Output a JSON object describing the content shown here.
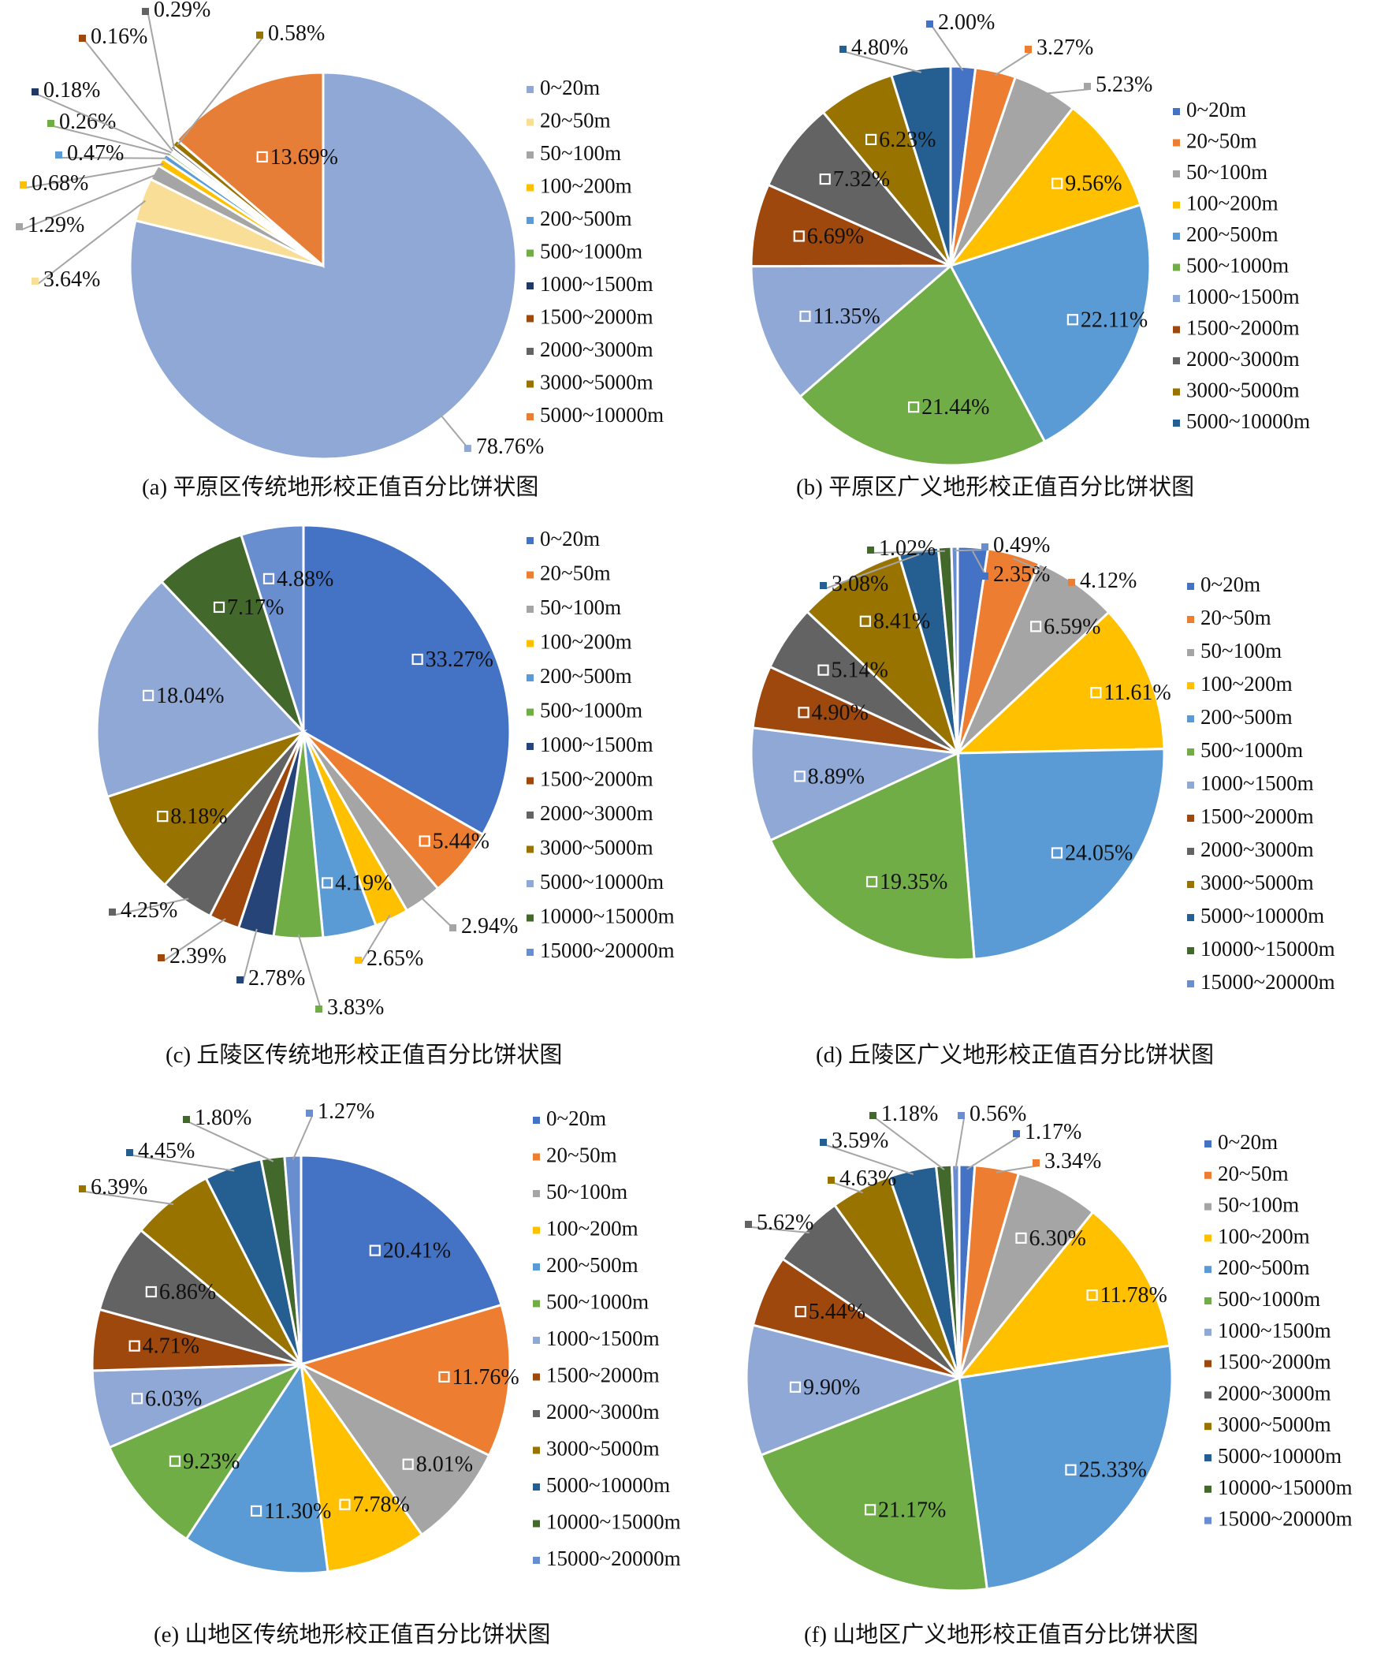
{
  "colors": {
    "c_0_20": "#4472C4",
    "c_20_50": "#ED7D31",
    "c_50_100": "#A5A5A5",
    "c_100_200": "#FFC000",
    "c_200_500": "#5B9BD5",
    "c_500_1000": "#70AD47",
    "c_1000_1500": "#264478",
    "c_1500_2000": "#9E480E",
    "c_2000_3000": "#636363",
    "c_3000_5000": "#997300",
    "c_5000_10000": "#255E91",
    "c_10000_15000": "#43682B",
    "c_15000_20000": "#698ED0"
  },
  "chart_data": [
    {
      "type": "pie",
      "caption": "(a) 平原区传统地形校正值百分比饼状图",
      "categories": [
        "0~20m",
        "20~50m",
        "50~100m",
        "100~200m",
        "200~500m",
        "500~1000m",
        "1000~1500m",
        "1500~2000m",
        "2000~3000m",
        "3000~5000m",
        "5000~10000m"
      ],
      "values": [
        78.76,
        3.64,
        1.29,
        0.68,
        0.47,
        0.26,
        0.18,
        0.16,
        0.29,
        0.58,
        13.69
      ],
      "labels": [
        "78.76%",
        "3.64%",
        "1.29%",
        "0.68%",
        "0.47%",
        "0.26%",
        "0.18%",
        "0.16%",
        "0.29%",
        "0.58%",
        "13.69%"
      ],
      "colors": [
        "#8FA8D6",
        "#F8DE96",
        "#A5A5A5",
        "#FFC000",
        "#5B9BD5",
        "#70AD47",
        "#1F3864",
        "#9E480E",
        "#636363",
        "#997300",
        "#E67E38"
      ]
    },
    {
      "type": "pie",
      "caption": "(b) 平原区广义地形校正值百分比饼状图",
      "categories": [
        "0~20m",
        "20~50m",
        "50~100m",
        "100~200m",
        "200~500m",
        "500~1000m",
        "1000~1500m",
        "1500~2000m",
        "2000~3000m",
        "3000~5000m",
        "5000~10000m"
      ],
      "values": [
        2.0,
        3.27,
        5.23,
        9.56,
        22.11,
        21.44,
        11.35,
        6.69,
        7.32,
        6.23,
        4.8
      ],
      "labels": [
        "2.00%",
        "3.27%",
        "5.23%",
        "9.56%",
        "22.11%",
        "21.44%",
        "11.35%",
        "6.69%",
        "7.32%",
        "6.23%",
        "4.80%"
      ],
      "colors": [
        "#4472C4",
        "#ED7D31",
        "#A5A5A5",
        "#FFC000",
        "#5B9BD5",
        "#70AD47",
        "#8FA8D6",
        "#9E480E",
        "#636363",
        "#997300",
        "#255E91"
      ]
    },
    {
      "type": "pie",
      "caption": "(c) 丘陵区传统地形校正值百分比饼状图",
      "categories": [
        "0~20m",
        "20~50m",
        "50~100m",
        "100~200m",
        "200~500m",
        "500~1000m",
        "1000~1500m",
        "1500~2000m",
        "2000~3000m",
        "3000~5000m",
        "5000~10000m",
        "10000~15000m",
        "15000~20000m"
      ],
      "values": [
        33.27,
        5.44,
        2.94,
        2.65,
        4.19,
        3.83,
        2.78,
        2.39,
        4.25,
        8.18,
        18.04,
        7.17,
        4.88
      ],
      "labels": [
        "33.27%",
        "5.44%",
        "2.94%",
        "2.65%",
        "4.19%",
        "3.83%",
        "2.78%",
        "2.39%",
        "4.25%",
        "8.18%",
        "18.04%",
        "7.17%",
        "4.88%"
      ],
      "colors": [
        "#4472C4",
        "#ED7D31",
        "#A5A5A5",
        "#FFC000",
        "#5B9BD5",
        "#70AD47",
        "#264478",
        "#9E480E",
        "#636363",
        "#997300",
        "#8FA8D6",
        "#43682B",
        "#698ED0"
      ]
    },
    {
      "type": "pie",
      "caption": "(d) 丘陵区广义地形校正值百分比饼状图",
      "categories": [
        "0~20m",
        "20~50m",
        "50~100m",
        "100~200m",
        "200~500m",
        "500~1000m",
        "1000~1500m",
        "1500~2000m",
        "2000~3000m",
        "3000~5000m",
        "5000~10000m",
        "10000~15000m",
        "15000~20000m"
      ],
      "values": [
        2.35,
        4.12,
        6.59,
        11.61,
        24.05,
        19.35,
        8.89,
        4.9,
        5.14,
        8.41,
        3.08,
        1.02,
        0.49
      ],
      "labels": [
        "2.35%",
        "4.12%",
        "6.59%",
        "11.61%",
        "24.05%",
        "19.35%",
        "8.89%",
        "4.90%",
        "5.14%",
        "8.41%",
        "3.08%",
        "1.02%",
        "0.49%"
      ],
      "colors": [
        "#4472C4",
        "#ED7D31",
        "#A5A5A5",
        "#FFC000",
        "#5B9BD5",
        "#70AD47",
        "#8FA8D6",
        "#9E480E",
        "#636363",
        "#997300",
        "#255E91",
        "#43682B",
        "#698ED0"
      ]
    },
    {
      "type": "pie",
      "caption": "(e) 山地区传统地形校正值百分比饼状图",
      "categories": [
        "0~20m",
        "20~50m",
        "50~100m",
        "100~200m",
        "200~500m",
        "500~1000m",
        "1000~1500m",
        "1500~2000m",
        "2000~3000m",
        "3000~5000m",
        "5000~10000m",
        "10000~15000m",
        "15000~20000m"
      ],
      "values": [
        20.41,
        11.76,
        8.01,
        7.78,
        11.3,
        9.23,
        6.03,
        4.71,
        6.86,
        6.39,
        4.45,
        1.8,
        1.27
      ],
      "labels": [
        "20.41%",
        "11.76%",
        "8.01%",
        "7.78%",
        "11.30%",
        "9.23%",
        "6.03%",
        "4.71%",
        "6.86%",
        "6.39%",
        "4.45%",
        "1.80%",
        "1.27%"
      ],
      "colors": [
        "#4472C4",
        "#ED7D31",
        "#A5A5A5",
        "#FFC000",
        "#5B9BD5",
        "#70AD47",
        "#8FA8D6",
        "#9E480E",
        "#636363",
        "#997300",
        "#255E91",
        "#43682B",
        "#698ED0"
      ]
    },
    {
      "type": "pie",
      "caption": "(f) 山地区广义地形校正值百分比饼状图",
      "categories": [
        "0~20m",
        "20~50m",
        "50~100m",
        "100~200m",
        "200~500m",
        "500~1000m",
        "1000~1500m",
        "1500~2000m",
        "2000~3000m",
        "3000~5000m",
        "5000~10000m",
        "10000~15000m",
        "15000~20000m"
      ],
      "values": [
        1.17,
        3.34,
        6.3,
        11.78,
        25.33,
        21.17,
        9.9,
        5.44,
        5.62,
        4.63,
        3.59,
        1.18,
        0.56
      ],
      "labels": [
        "1.17%",
        "3.34%",
        "6.30%",
        "11.78%",
        "25.33%",
        "21.17%",
        "9.90%",
        "5.44%",
        "5.62%",
        "4.63%",
        "3.59%",
        "1.18%",
        "0.56%"
      ],
      "colors": [
        "#4472C4",
        "#ED7D31",
        "#A5A5A5",
        "#FFC000",
        "#5B9BD5",
        "#70AD47",
        "#8FA8D6",
        "#9E480E",
        "#636363",
        "#997300",
        "#255E91",
        "#43682B",
        "#698ED0"
      ]
    }
  ]
}
